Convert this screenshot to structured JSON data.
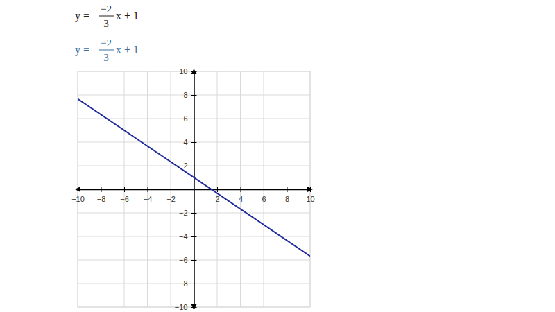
{
  "chart_data": {
    "type": "line",
    "title": {
      "lhs": "y =",
      "numerator": "−2",
      "denominator": "3",
      "rhs": "x + 1"
    },
    "x": [
      -10,
      10
    ],
    "series": [
      {
        "name": {
          "lhs": "y =",
          "numerator": "−2",
          "denominator": "3",
          "rhs": "x + 1"
        },
        "color": "#1f2a9c",
        "values": [
          7.67,
          -5.67
        ]
      }
    ],
    "xlim": [
      -10,
      10
    ],
    "xticks": [
      {
        "value": -10,
        "label": "−10"
      },
      {
        "value": -8,
        "label": "−8"
      },
      {
        "value": -6,
        "label": "−6"
      },
      {
        "value": -4,
        "label": "−4"
      },
      {
        "value": -2,
        "label": "−2"
      },
      2,
      4,
      6,
      8,
      10
    ],
    "ylim": [
      -10,
      10
    ],
    "yticks": [
      {
        "value": -10,
        "label": "−10"
      },
      {
        "value": -8,
        "label": "−8"
      },
      {
        "value": -6,
        "label": "−6"
      },
      {
        "value": -4,
        "label": "−4"
      },
      {
        "value": -2,
        "label": "−2"
      },
      2,
      4,
      6,
      8,
      10
    ],
    "grid": true
  }
}
